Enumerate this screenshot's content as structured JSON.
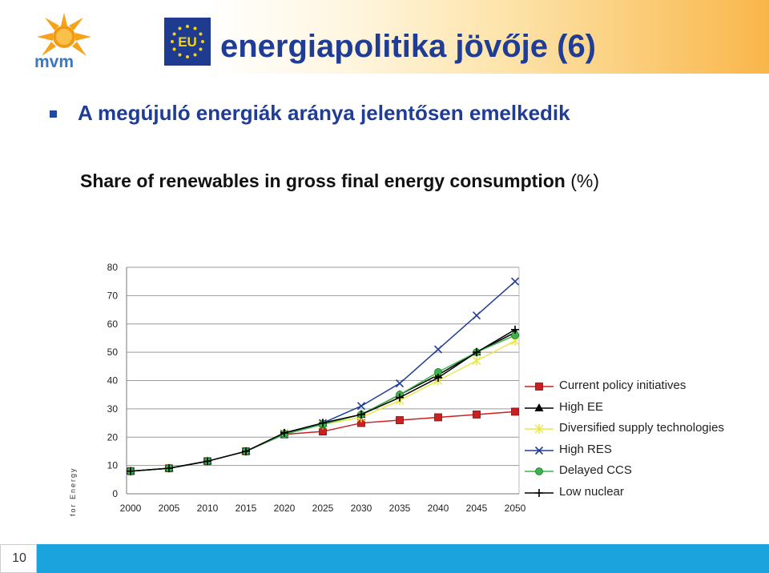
{
  "header": {
    "title": "energiapolitika jövője (6)",
    "logo_text": "mvm",
    "eu_label": "EU"
  },
  "subtitle": "A megújuló energiák aránya jelentősen emelkedik",
  "side_text": "for Energy",
  "page_number": "10",
  "colors": {
    "title": "#1f3d94",
    "footer": "#1aa3dc",
    "header_gradient_end": "#f9b64a"
  },
  "chart_data": {
    "type": "line",
    "title": "Share of renewables in gross final energy consumption",
    "title_unit": "(%)",
    "x": [
      2000,
      2005,
      2010,
      2015,
      2020,
      2025,
      2030,
      2035,
      2040,
      2045,
      2050
    ],
    "ylim": [
      0,
      80
    ],
    "yticks": [
      0,
      10,
      20,
      30,
      40,
      50,
      60,
      70,
      80
    ],
    "grid": "horizontal",
    "legend_position": "right",
    "series": [
      {
        "name": "Current policy initiatives",
        "color": "#cc1f1f",
        "marker": "square",
        "values": [
          8,
          9,
          11.5,
          15,
          21,
          22,
          25,
          26,
          27,
          28,
          29
        ]
      },
      {
        "name": "High EE",
        "color": "#000000",
        "marker": "triangle",
        "values": [
          8,
          9,
          11.5,
          15,
          21.5,
          25,
          28,
          35,
          42,
          50,
          57
        ]
      },
      {
        "name": "Diversified supply technologies",
        "color": "#e8e84a",
        "marker": "star",
        "values": [
          8,
          9,
          11.5,
          15,
          21.5,
          24.5,
          27,
          33,
          40,
          47,
          54
        ]
      },
      {
        "name": "High RES",
        "color": "#1f3d94",
        "marker": "x",
        "values": [
          8,
          9,
          11.5,
          15,
          21,
          25,
          31,
          39,
          51,
          63,
          75
        ]
      },
      {
        "name": "Delayed CCS",
        "color": "#3cb44b",
        "marker": "circle",
        "values": [
          8,
          9,
          11.5,
          15,
          21,
          24.5,
          28,
          35,
          43,
          50,
          56
        ]
      },
      {
        "name": "Low nuclear",
        "color": "#000000",
        "marker": "plus",
        "values": [
          8,
          9,
          11.5,
          15,
          21.5,
          25,
          28,
          34,
          41,
          50,
          58
        ]
      }
    ]
  }
}
